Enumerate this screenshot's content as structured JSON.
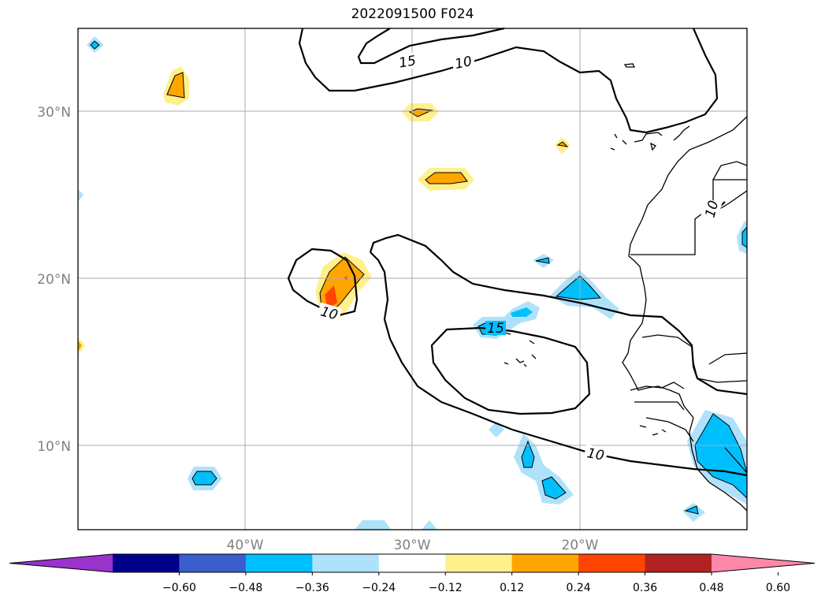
{
  "title": "2022091500 F024",
  "map": {
    "lat_labels": [
      {
        "text": "30°N",
        "lat": 30
      },
      {
        "text": "20°N",
        "lat": 20
      },
      {
        "text": "10°N",
        "lat": 10
      }
    ],
    "lon_labels": [
      {
        "text": "40°W",
        "lon": -40
      },
      {
        "text": "30°W",
        "lon": -30
      },
      {
        "text": "20°W",
        "lon": -20
      }
    ],
    "contour_labels": [
      "15",
      "10",
      "10",
      "10",
      "15",
      "10"
    ]
  },
  "colorbar": {
    "ticks": [
      "−0.60",
      "−0.48",
      "−0.36",
      "−0.24",
      "−0.12",
      "0.12",
      "0.24",
      "0.36",
      "0.48",
      "0.60"
    ],
    "colors": [
      "#9933cc",
      "#00008b",
      "#3a5fcd",
      "#00bfff",
      "#aee2fa",
      "#ffffff",
      "#fff08c",
      "#ffa500",
      "#ff4500",
      "#b22222",
      "#ff88aa"
    ]
  }
}
